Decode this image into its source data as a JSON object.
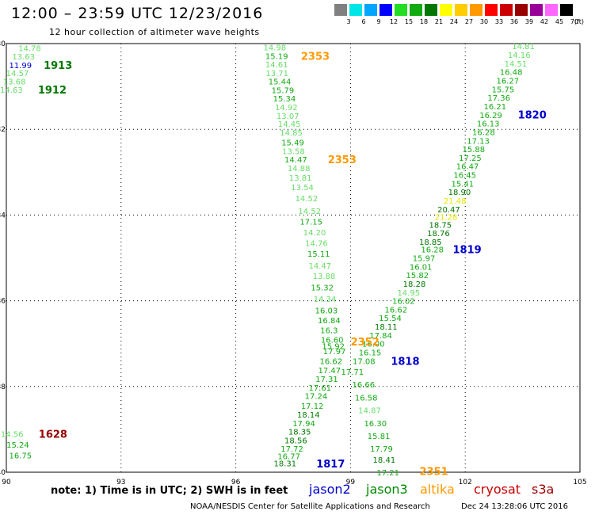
{
  "title": "12:00 – 23:59 UTC 12/23/2016",
  "subtitle": "12 hour collection of altimeter wave heights",
  "legend": {
    "colors": [
      "#808080",
      "#00e5e5",
      "#00a6ff",
      "#0000ff",
      "#22dd22",
      "#11aa11",
      "#007700",
      "#ffff00",
      "#ffcc00",
      "#ff9900",
      "#ff0000",
      "#cc0000",
      "#990000",
      "#990099",
      "#ff66ff",
      "#000000"
    ],
    "labels": [
      "3",
      "6",
      "9",
      "12",
      "15",
      "18",
      "21",
      "24",
      "27",
      "30",
      "33",
      "36",
      "39",
      "42",
      "45",
      "70"
    ],
    "unit": "(ft)"
  },
  "colors": {
    "light": "#66dd66",
    "green": "#11aa11",
    "dark": "#007700",
    "blue": "#0000cc",
    "orange": "#ff9900",
    "yellow": "#e6e600",
    "maroon": "#990000"
  },
  "map": {
    "lon_min": 90,
    "lon_max": 105,
    "lat_max": -30,
    "lat_min": -40
  },
  "axes": {
    "x_ticks": [
      {
        "v": 90,
        "label": "90"
      },
      {
        "v": 93,
        "label": "93"
      },
      {
        "v": 96,
        "label": "96"
      },
      {
        "v": 99,
        "label": "99"
      },
      {
        "v": 102,
        "label": "102"
      },
      {
        "v": 105,
        "label": "105"
      }
    ],
    "y_ticks": [
      {
        "v": -30,
        "label": "-30"
      },
      {
        "v": -32,
        "label": "-32"
      },
      {
        "v": -34,
        "label": "-34"
      },
      {
        "v": -36,
        "label": "-36"
      },
      {
        "v": -38,
        "label": "-38"
      },
      {
        "v": -40,
        "label": "-40"
      }
    ]
  },
  "chart_data": {
    "type": "scatter",
    "title": "12:00 – 23:59 UTC 12/23/2016",
    "subtitle": "12 hour collection of altimeter wave heights",
    "xlim": [
      90,
      105
    ],
    "ylim": [
      -40,
      -30
    ],
    "points": [
      {
        "lon": 90.61,
        "lat": -30.1,
        "text": "14.78",
        "c": "light"
      },
      {
        "lon": 90.45,
        "lat": -30.3,
        "text": "13.63",
        "c": "light"
      },
      {
        "lon": 90.37,
        "lat": -30.5,
        "text": "11.99",
        "c": "blue"
      },
      {
        "lon": 90.29,
        "lat": -30.68,
        "text": "14.57",
        "c": "light"
      },
      {
        "lon": 90.21,
        "lat": -30.88,
        "text": "13.68",
        "c": "light"
      },
      {
        "lon": 90.13,
        "lat": -31.07,
        "text": "14.63",
        "c": "light"
      },
      {
        "lon": 97.02,
        "lat": -30.08,
        "text": "14.98",
        "c": "light"
      },
      {
        "lon": 97.07,
        "lat": -30.29,
        "text": "15.19",
        "c": "green"
      },
      {
        "lon": 97.07,
        "lat": -30.48,
        "text": "14.61",
        "c": "light"
      },
      {
        "lon": 97.08,
        "lat": -30.68,
        "text": "13.71",
        "c": "light"
      },
      {
        "lon": 97.15,
        "lat": -30.88,
        "text": "15.44",
        "c": "green"
      },
      {
        "lon": 97.23,
        "lat": -31.08,
        "text": "15.79",
        "c": "green"
      },
      {
        "lon": 97.27,
        "lat": -31.28,
        "text": "15.34",
        "c": "green"
      },
      {
        "lon": 97.32,
        "lat": -31.48,
        "text": "14.92",
        "c": "light"
      },
      {
        "lon": 97.36,
        "lat": -31.68,
        "text": "13.07",
        "c": "light"
      },
      {
        "lon": 97.4,
        "lat": -31.87,
        "text": "14.45",
        "c": "light"
      },
      {
        "lon": 97.45,
        "lat": -32.07,
        "text": "14.85",
        "c": "light"
      },
      {
        "lon": 97.49,
        "lat": -32.3,
        "text": "15.49",
        "c": "green"
      },
      {
        "lon": 97.51,
        "lat": -32.5,
        "text": "13.58",
        "c": "light"
      },
      {
        "lon": 97.57,
        "lat": -32.7,
        "text": "14.47",
        "c": "green"
      },
      {
        "lon": 97.65,
        "lat": -32.9,
        "text": "14.88",
        "c": "light"
      },
      {
        "lon": 97.69,
        "lat": -33.12,
        "text": "13.81",
        "c": "light"
      },
      {
        "lon": 97.74,
        "lat": -33.35,
        "text": "13.54",
        "c": "light"
      },
      {
        "lon": 97.85,
        "lat": -33.6,
        "text": "14.52",
        "c": "light"
      },
      {
        "lon": 97.93,
        "lat": -33.9,
        "text": "14.52",
        "c": "light"
      },
      {
        "lon": 97.97,
        "lat": -34.15,
        "text": "17.15",
        "c": "green"
      },
      {
        "lon": 98.06,
        "lat": -34.4,
        "text": "14.20",
        "c": "light"
      },
      {
        "lon": 98.11,
        "lat": -34.65,
        "text": "14.76",
        "c": "light"
      },
      {
        "lon": 98.17,
        "lat": -34.9,
        "text": "15.11",
        "c": "green"
      },
      {
        "lon": 98.2,
        "lat": -35.18,
        "text": "14.47",
        "c": "light"
      },
      {
        "lon": 98.31,
        "lat": -35.42,
        "text": "13.88",
        "c": "light"
      },
      {
        "lon": 98.26,
        "lat": -35.68,
        "text": "15.32",
        "c": "green"
      },
      {
        "lon": 98.33,
        "lat": -35.95,
        "text": "14.34",
        "c": "light"
      },
      {
        "lon": 98.37,
        "lat": -36.22,
        "text": "16.03",
        "c": "green"
      },
      {
        "lon": 98.44,
        "lat": -36.45,
        "text": "16.84",
        "c": "green"
      },
      {
        "lon": 98.44,
        "lat": -36.68,
        "text": "16.3",
        "c": "green"
      },
      {
        "lon": 98.52,
        "lat": -36.9,
        "text": "16.60",
        "c": "green"
      },
      {
        "lon": 98.55,
        "lat": -37.05,
        "text": "15.92",
        "c": "green"
      },
      {
        "lon": 98.58,
        "lat": -37.17,
        "text": "17.97",
        "c": "green"
      },
      {
        "lon": 98.49,
        "lat": -37.4,
        "text": "16.62",
        "c": "green"
      },
      {
        "lon": 98.45,
        "lat": -37.62,
        "text": "17.47",
        "c": "green"
      },
      {
        "lon": 98.38,
        "lat": -37.82,
        "text": "17.31",
        "c": "green"
      },
      {
        "lon": 98.2,
        "lat": -38.02,
        "text": "17.61",
        "c": "green"
      },
      {
        "lon": 98.1,
        "lat": -38.22,
        "text": "17.24",
        "c": "green"
      },
      {
        "lon": 98.0,
        "lat": -38.45,
        "text": "17.12",
        "c": "green"
      },
      {
        "lon": 97.9,
        "lat": -38.65,
        "text": "18.14",
        "c": "dark"
      },
      {
        "lon": 97.78,
        "lat": -38.85,
        "text": "17.94",
        "c": "green"
      },
      {
        "lon": 97.67,
        "lat": -39.05,
        "text": "18.35",
        "c": "dark"
      },
      {
        "lon": 97.57,
        "lat": -39.25,
        "text": "18.56",
        "c": "dark"
      },
      {
        "lon": 97.47,
        "lat": -39.45,
        "text": "17.72",
        "c": "green"
      },
      {
        "lon": 97.39,
        "lat": -39.62,
        "text": "16.77",
        "c": "green"
      },
      {
        "lon": 97.29,
        "lat": -39.79,
        "text": "18.31",
        "c": "dark"
      },
      {
        "lon": 103.52,
        "lat": -30.06,
        "text": "14.81",
        "c": "light"
      },
      {
        "lon": 103.41,
        "lat": -30.26,
        "text": "14.16",
        "c": "light"
      },
      {
        "lon": 103.32,
        "lat": -30.46,
        "text": "14.51",
        "c": "light"
      },
      {
        "lon": 103.2,
        "lat": -30.66,
        "text": "16.48",
        "c": "green"
      },
      {
        "lon": 103.11,
        "lat": -30.86,
        "text": "16.27",
        "c": "green"
      },
      {
        "lon": 102.99,
        "lat": -31.06,
        "text": "15.75",
        "c": "green"
      },
      {
        "lon": 102.88,
        "lat": -31.26,
        "text": "17.36",
        "c": "green"
      },
      {
        "lon": 102.78,
        "lat": -31.46,
        "text": "16.21",
        "c": "green"
      },
      {
        "lon": 102.67,
        "lat": -31.66,
        "text": "16.29",
        "c": "green"
      },
      {
        "lon": 102.6,
        "lat": -31.86,
        "text": "16.13",
        "c": "green"
      },
      {
        "lon": 102.48,
        "lat": -32.06,
        "text": "16.28",
        "c": "green"
      },
      {
        "lon": 102.34,
        "lat": -32.26,
        "text": "17.13",
        "c": "green"
      },
      {
        "lon": 102.22,
        "lat": -32.46,
        "text": "15.88",
        "c": "green"
      },
      {
        "lon": 102.13,
        "lat": -32.66,
        "text": "17.25",
        "c": "green"
      },
      {
        "lon": 102.06,
        "lat": -32.86,
        "text": "16.47",
        "c": "green"
      },
      {
        "lon": 101.99,
        "lat": -33.06,
        "text": "16.45",
        "c": "green"
      },
      {
        "lon": 101.93,
        "lat": -33.26,
        "text": "15.41",
        "c": "green"
      },
      {
        "lon": 101.85,
        "lat": -33.46,
        "text": "18.90",
        "c": "dark"
      },
      {
        "lon": 101.73,
        "lat": -33.66,
        "text": "21.48",
        "c": "yellow"
      },
      {
        "lon": 101.57,
        "lat": -33.86,
        "text": "20.47",
        "c": "dark"
      },
      {
        "lon": 101.5,
        "lat": -34.04,
        "text": "21.28",
        "c": "yellow"
      },
      {
        "lon": 101.35,
        "lat": -34.22,
        "text": "18.75",
        "c": "dark"
      },
      {
        "lon": 101.3,
        "lat": -34.42,
        "text": "18.76",
        "c": "dark"
      },
      {
        "lon": 101.09,
        "lat": -34.62,
        "text": "18.85",
        "c": "dark"
      },
      {
        "lon": 101.14,
        "lat": -34.8,
        "text": "16.28",
        "c": "green"
      },
      {
        "lon": 100.92,
        "lat": -35.0,
        "text": "15.97",
        "c": "green"
      },
      {
        "lon": 100.84,
        "lat": -35.2,
        "text": "16.01",
        "c": "green"
      },
      {
        "lon": 100.75,
        "lat": -35.4,
        "text": "15.82",
        "c": "green"
      },
      {
        "lon": 100.67,
        "lat": -35.6,
        "text": "18.28",
        "c": "dark"
      },
      {
        "lon": 100.52,
        "lat": -35.8,
        "text": "14.95",
        "c": "light"
      },
      {
        "lon": 100.39,
        "lat": -36.0,
        "text": "16.02",
        "c": "green"
      },
      {
        "lon": 100.19,
        "lat": -36.2,
        "text": "16.62",
        "c": "green"
      },
      {
        "lon": 100.04,
        "lat": -36.4,
        "text": "15.54",
        "c": "green"
      },
      {
        "lon": 99.93,
        "lat": -36.6,
        "text": "18.11",
        "c": "dark"
      },
      {
        "lon": 99.79,
        "lat": -36.8,
        "text": "17.84",
        "c": "green"
      },
      {
        "lon": 99.6,
        "lat": -37.0,
        "text": "16.00",
        "c": "green"
      },
      {
        "lon": 99.51,
        "lat": -37.2,
        "text": "16.15",
        "c": "green"
      },
      {
        "lon": 99.35,
        "lat": -37.4,
        "text": "17.08",
        "c": "green"
      },
      {
        "lon": 99.05,
        "lat": -37.65,
        "text": "17.71",
        "c": "green"
      },
      {
        "lon": 99.34,
        "lat": -37.95,
        "text": "16.66",
        "c": "green"
      },
      {
        "lon": 99.41,
        "lat": -38.25,
        "text": "16.58",
        "c": "green"
      },
      {
        "lon": 99.5,
        "lat": -38.55,
        "text": "14.87",
        "c": "light"
      },
      {
        "lon": 99.65,
        "lat": -38.85,
        "text": "16.30",
        "c": "green"
      },
      {
        "lon": 99.74,
        "lat": -39.15,
        "text": "15.81",
        "c": "green"
      },
      {
        "lon": 99.81,
        "lat": -39.45,
        "text": "17.79",
        "c": "green"
      },
      {
        "lon": 99.88,
        "lat": -39.7,
        "text": "18.41",
        "c": "dark"
      },
      {
        "lon": 99.98,
        "lat": -40.0,
        "text": "17.21",
        "c": "green"
      },
      {
        "lon": 90.15,
        "lat": -39.1,
        "text": "14.56",
        "c": "light"
      },
      {
        "lon": 90.3,
        "lat": -39.35,
        "text": "15.24",
        "c": "green"
      },
      {
        "lon": 90.37,
        "lat": -39.6,
        "text": "16.75",
        "c": "green"
      }
    ],
    "time_labels": [
      {
        "lon": 91.35,
        "lat": -30.5,
        "text": "1913",
        "c": "dark"
      },
      {
        "lon": 91.2,
        "lat": -31.07,
        "text": "1912",
        "c": "dark"
      },
      {
        "lon": 98.08,
        "lat": -30.29,
        "text": "2353",
        "c": "orange"
      },
      {
        "lon": 98.78,
        "lat": -32.7,
        "text": "2353",
        "c": "orange"
      },
      {
        "lon": 103.75,
        "lat": -31.65,
        "text": "1820",
        "c": "blue"
      },
      {
        "lon": 102.05,
        "lat": -34.8,
        "text": "1819",
        "c": "blue"
      },
      {
        "lon": 99.38,
        "lat": -36.95,
        "text": "2352",
        "c": "orange"
      },
      {
        "lon": 100.43,
        "lat": -37.4,
        "text": "1818",
        "c": "blue"
      },
      {
        "lon": 91.22,
        "lat": -39.1,
        "text": "1628",
        "c": "maroon"
      },
      {
        "lon": 98.48,
        "lat": -39.8,
        "text": "1817",
        "c": "blue"
      },
      {
        "lon": 101.18,
        "lat": -39.97,
        "text": "2351",
        "c": "orange"
      }
    ]
  },
  "note": "note:  1) Time is in UTC;  2) SWH is in feet",
  "satellites": [
    {
      "label": "jason2",
      "color": "#0000cc"
    },
    {
      "label": "jason3",
      "color": "#008800"
    },
    {
      "label": "altika",
      "color": "#ff9900"
    },
    {
      "label": "cryosat",
      "color": "#cc0000"
    },
    {
      "label": "s3a",
      "color": "#990000"
    }
  ],
  "footer": "NOAA/NESDIS Center for Satellite Applications and Research",
  "timestamp": "Dec 24 13:28:06 UTC 2016"
}
